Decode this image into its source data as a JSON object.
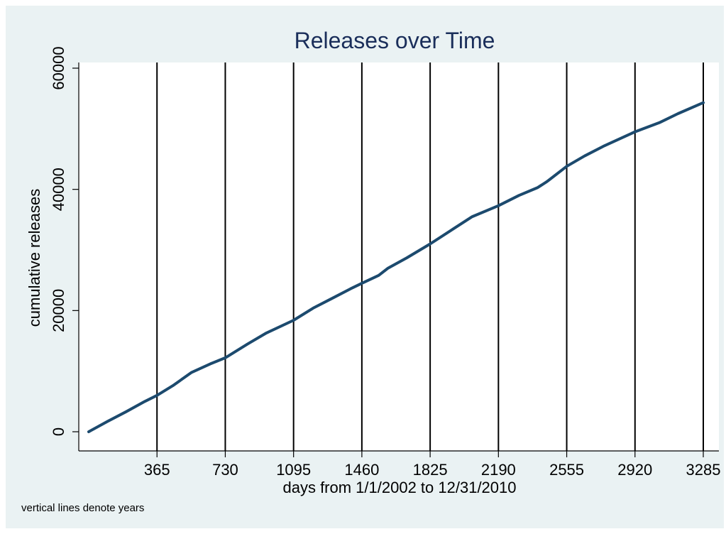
{
  "chart_data": {
    "type": "line",
    "title": "Releases over Time",
    "xlabel": "days from 1/1/2002 to 12/31/2010",
    "ylabel": "cumulative releases",
    "note": "vertical lines denote years",
    "xlim": [
      0,
      3285
    ],
    "ylim": [
      0,
      60000
    ],
    "x_ticks": [
      365,
      730,
      1095,
      1460,
      1825,
      2190,
      2555,
      2920,
      3285
    ],
    "x_tick_labels": [
      "365",
      "730",
      "1095",
      "1460",
      "1825",
      "2190",
      "2555",
      "2920",
      "3285"
    ],
    "y_ticks": [
      0,
      20000,
      40000,
      60000
    ],
    "y_tick_labels": [
      "0",
      "20000",
      "40000",
      "60000"
    ],
    "vertical_lines": [
      365,
      730,
      1095,
      1460,
      1825,
      2190,
      2555,
      2920,
      3285
    ],
    "grid": false,
    "colors": {
      "background": "#eaf2f3",
      "plot_background": "#ffffff",
      "line": "#1c4a6e",
      "title": "#1a2e5a"
    },
    "series": [
      {
        "x": [
          0,
          100,
          200,
          300,
          365,
          450,
          550,
          650,
          730,
          850,
          950,
          1095,
          1200,
          1300,
          1400,
          1460,
          1550,
          1600,
          1700,
          1825,
          1950,
          2050,
          2190,
          2300,
          2400,
          2450,
          2555,
          2650,
          2750,
          2920,
          3050,
          3150,
          3285
        ],
        "y": [
          0,
          1700,
          3300,
          5000,
          6000,
          7600,
          9800,
          11200,
          12200,
          14500,
          16300,
          18400,
          20400,
          22000,
          23600,
          24500,
          25800,
          27000,
          28700,
          31000,
          33500,
          35500,
          37300,
          39000,
          40300,
          41300,
          43800,
          45500,
          47100,
          49500,
          51000,
          52500,
          54300
        ]
      }
    ]
  }
}
